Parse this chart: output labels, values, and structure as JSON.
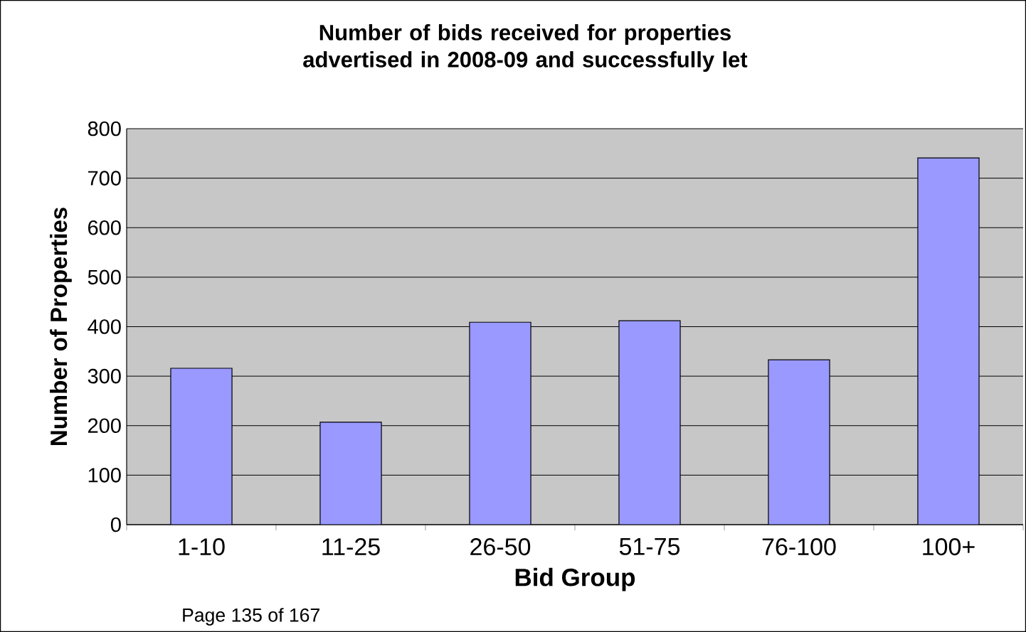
{
  "chart_data": {
    "type": "bar",
    "title": "Number of bids received for properties advertised in 2008-09 and successfully let",
    "xlabel": "Bid Group",
    "ylabel": "Number of Properties",
    "categories": [
      "1-10",
      "11-25",
      "26-50",
      "51-75",
      "76-100",
      "100+"
    ],
    "values": [
      316,
      207,
      409,
      412,
      333,
      741
    ],
    "color": "#9999ff",
    "ylim": [
      0,
      800
    ],
    "yticks": [
      0,
      100,
      200,
      300,
      400,
      500,
      600,
      700,
      800
    ],
    "grid": "y",
    "annotations": [
      "Page 135 of 167"
    ]
  }
}
